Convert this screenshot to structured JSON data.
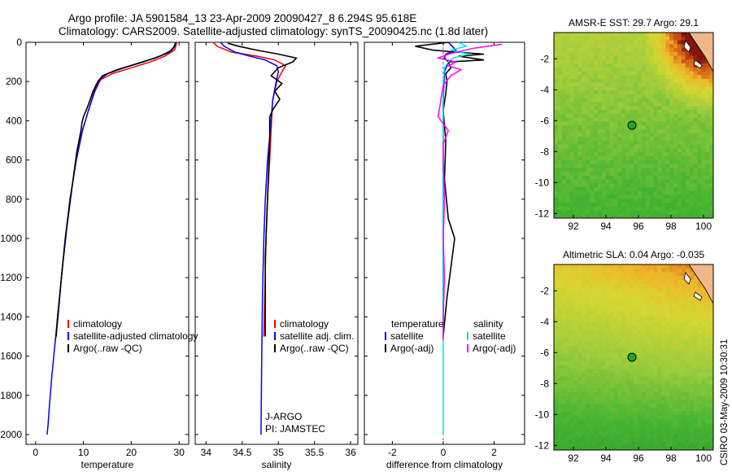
{
  "header": {
    "line1": "Argo profile: JA 5901584_13 23-Apr-2009 20090427_8 6.294S 95.618E",
    "line2": "Climatology: CARS2009. Satellite-adjusted climatology: synTS_20090425.nc (1.8d later)"
  },
  "side_stamp": "CSIRO 03-May-2009 10:30:31",
  "colors": {
    "clim": "#ff0000",
    "sat": "#0000ff",
    "argo": "#000000",
    "sal_sat": "#00e5ee",
    "sal_argo": "#ff00ff"
  },
  "chart_data": [
    {
      "type": "line",
      "name": "temperature-panel",
      "xlabel": "temperature",
      "xlim": [
        -2,
        32
      ],
      "ylim": [
        0,
        2050
      ],
      "y_inverted": true,
      "xticks": [
        0,
        10,
        20,
        30
      ],
      "xtick_labels": [
        "0",
        "10",
        "20",
        "30"
      ],
      "yticks": [
        0,
        200,
        400,
        600,
        800,
        1000,
        1200,
        1400,
        1600,
        1800,
        2000
      ],
      "ytick_labels": [
        "0",
        "200",
        "400",
        "600",
        "800",
        "1000",
        "1200",
        "1400",
        "1600",
        "1800",
        "2000"
      ],
      "legend": [
        "climatology",
        "satellite-adjusted climatology",
        "Argo(..raw -QC)"
      ],
      "series": [
        {
          "name": "climatology",
          "color": "#ff0000",
          "x": [
            29.5,
            29.3,
            29,
            27,
            24,
            20,
            16,
            13.6,
            12.4,
            11,
            9.8,
            8.5,
            7.2,
            6.2,
            5.4,
            4.8,
            4.4,
            4.1
          ],
          "y": [
            0,
            20,
            40,
            70,
            100,
            130,
            160,
            190,
            250,
            350,
            450,
            600,
            800,
            1000,
            1200,
            1350,
            1450,
            1520
          ]
        },
        {
          "name": "satellite-adjusted climatology",
          "color": "#0000ff",
          "x": [
            29.3,
            29.1,
            28.5,
            26,
            22.5,
            18.5,
            15,
            13.4,
            12.3,
            11,
            9.8,
            8.5,
            7.2,
            6.2,
            5.4,
            4.7,
            4,
            3.4,
            2.9,
            2.6,
            2.4
          ],
          "y": [
            0,
            20,
            40,
            70,
            100,
            130,
            160,
            190,
            250,
            350,
            450,
            600,
            800,
            1000,
            1200,
            1400,
            1550,
            1700,
            1850,
            1950,
            2000
          ]
        },
        {
          "name": "Argo(..raw -QC)",
          "color": "#000000",
          "x": [
            29.2,
            29,
            28,
            25,
            21,
            17,
            14,
            13,
            12,
            11,
            10,
            9.7,
            9.5,
            8.6,
            7.5,
            6.5,
            5.6,
            5,
            4.6,
            4.3
          ],
          "y": [
            5,
            20,
            50,
            80,
            110,
            140,
            170,
            200,
            250,
            320,
            380,
            410,
            450,
            560,
            760,
            950,
            1150,
            1300,
            1400,
            1500
          ]
        }
      ]
    },
    {
      "type": "line",
      "name": "salinity-panel",
      "xlabel": "salinity",
      "xlim": [
        33.85,
        36.1
      ],
      "ylim": [
        0,
        2050
      ],
      "y_inverted": true,
      "xticks": [
        34,
        34.5,
        35,
        35.5,
        36
      ],
      "xtick_labels": [
        "34",
        "34.5",
        "35",
        "35.5",
        "36"
      ],
      "legend": [
        "climatology",
        "satellite adj. clim.",
        "Argo(..raw -QC)"
      ],
      "annotation": [
        "J-ARGO",
        "PI: JAMSTEC"
      ],
      "series": [
        {
          "name": "climatology",
          "color": "#ff0000",
          "x": [
            34.1,
            34.15,
            34.35,
            34.7,
            34.95,
            35.1,
            35.05,
            34.98,
            34.92,
            34.9,
            34.88,
            34.85,
            34.83,
            34.8
          ],
          "y": [
            0,
            20,
            50,
            70,
            90,
            120,
            150,
            200,
            300,
            450,
            600,
            800,
            1000,
            1500
          ]
        },
        {
          "name": "satellite adj. clim.",
          "color": "#0000ff",
          "x": [
            34.2,
            34.25,
            34.4,
            34.6,
            34.82,
            34.98,
            35.0,
            34.97,
            34.92,
            34.89,
            34.85,
            34.82,
            34.8,
            34.78,
            34.77,
            34.76
          ],
          "y": [
            0,
            20,
            50,
            70,
            90,
            120,
            150,
            200,
            300,
            450,
            600,
            800,
            1000,
            1300,
            1600,
            2000
          ]
        },
        {
          "name": "Argo(..raw -QC)",
          "color": "#000000",
          "x": [
            34.3,
            34.45,
            34.7,
            35.0,
            35.25,
            35.2,
            35.0,
            34.9,
            35.05,
            34.95,
            35.02,
            34.93,
            34.88,
            34.88,
            34.86,
            34.84,
            34.82,
            34.82
          ],
          "y": [
            5,
            20,
            40,
            60,
            80,
            100,
            130,
            170,
            210,
            250,
            290,
            340,
            380,
            500,
            700,
            900,
            1100,
            1500
          ]
        }
      ]
    },
    {
      "type": "line",
      "name": "difference-panel",
      "xlabel": "difference from climatology",
      "xlim": [
        -3.1,
        3.2
      ],
      "ylim": [
        0,
        2050
      ],
      "y_inverted": true,
      "xticks": [
        -2,
        0,
        2
      ],
      "xtick_labels": [
        "-2",
        "0",
        "2"
      ],
      "legend": [
        "temperature",
        "satellite",
        "Argo(-adj)",
        "salinity",
        "satellite",
        "Argo(-adj)"
      ],
      "series": [
        {
          "name": "temperature satellite",
          "color": "#0000ff",
          "x": [
            0.2,
            0.35,
            0.5,
            0.1,
            0.05,
            0.2,
            0.15,
            0.05,
            0.0,
            0.0,
            0.0
          ],
          "y": [
            0,
            20,
            40,
            60,
            80,
            100,
            120,
            150,
            300,
            800,
            1500
          ]
        },
        {
          "name": "temperature Argo(-adj)",
          "color": "#000000",
          "x": [
            0.2,
            -1.1,
            -0.4,
            0.5,
            1.6,
            0.6,
            1.6,
            0.2,
            0.3,
            0.1,
            0.15,
            0.1,
            0.0,
            0.1,
            0.05,
            0.2,
            0.45,
            0.35,
            0.15,
            0.0
          ],
          "y": [
            0,
            20,
            40,
            50,
            60,
            70,
            90,
            100,
            130,
            160,
            200,
            260,
            350,
            500,
            700,
            900,
            1000,
            1100,
            1300,
            1500
          ]
        },
        {
          "name": "salinity satellite",
          "color": "#00e5ee",
          "x": [
            0.6,
            0.9,
            0.3,
            1.0,
            0.4,
            0.2,
            0.05,
            0.0,
            0.0,
            0.0,
            0.0,
            0.0
          ],
          "y": [
            0,
            20,
            40,
            60,
            80,
            100,
            130,
            200,
            500,
            1000,
            1500,
            2000
          ]
        },
        {
          "name": "salinity Argo(-adj)",
          "color": "#ff00ff",
          "x": [
            2.3,
            1.2,
            0.2,
            -0.2,
            0.5,
            0.2,
            0.7,
            0.3,
            0.0,
            -0.2,
            0.2,
            0.0,
            0.0,
            0.05,
            0.0,
            0.05,
            0.0,
            0.0
          ],
          "y": [
            10,
            30,
            60,
            80,
            100,
            120,
            140,
            170,
            220,
            380,
            450,
            520,
            600,
            800,
            1000,
            1200,
            1400,
            1520
          ]
        }
      ]
    },
    {
      "type": "heatmap",
      "name": "sst-map",
      "title": "AMSR-E SST: 29.7  Argo: 29.1",
      "xlim": [
        90.8,
        100.6
      ],
      "ylim": [
        -12.3,
        -0.3
      ],
      "xticks": [
        92,
        94,
        96,
        98,
        100
      ],
      "xtick_labels": [
        "92",
        "94",
        "96",
        "98",
        "100"
      ],
      "yticks": [
        -2,
        -4,
        -6,
        -8,
        -10,
        -12
      ],
      "ytick_labels": [
        "-2",
        "-4",
        "-6",
        "-8",
        "-10",
        "-12"
      ],
      "marker": {
        "lon": 95.6,
        "lat": -6.3
      }
    },
    {
      "type": "heatmap",
      "name": "sla-map",
      "title": "Altimetric SLA: 0.04  Argo: -0.035",
      "xlim": [
        90.8,
        100.6
      ],
      "ylim": [
        -12.3,
        -0.3
      ],
      "xticks": [
        92,
        94,
        96,
        98,
        100
      ],
      "xtick_labels": [
        "92",
        "94",
        "96",
        "98",
        "100"
      ],
      "yticks": [
        -2,
        -4,
        -6,
        -8,
        -10,
        -12
      ],
      "ytick_labels": [
        "-2",
        "-4",
        "-6",
        "-8",
        "-10",
        "-12"
      ],
      "marker": {
        "lon": 95.6,
        "lat": -6.3
      }
    }
  ]
}
